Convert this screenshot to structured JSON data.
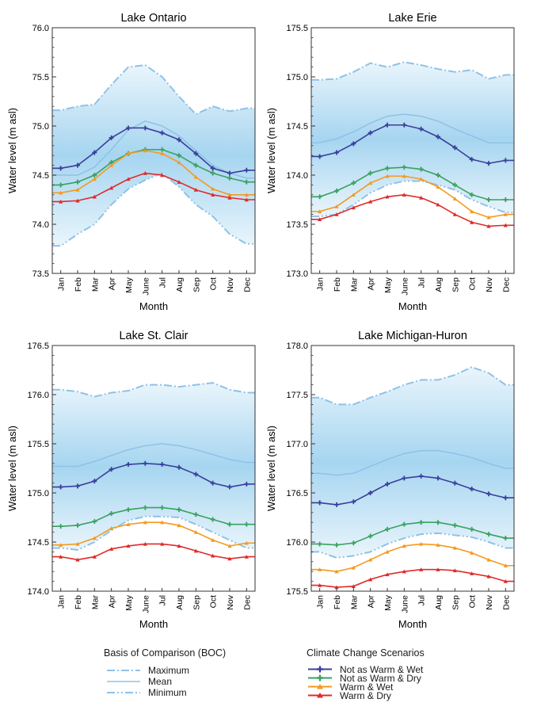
{
  "colors": {
    "not_warm_wet": "#3a3f9c",
    "not_warm_dry": "#3aa160",
    "warm_wet": "#f39a1f",
    "warm_dry": "#e02a2a",
    "boc_line": "#8ec2e8",
    "boc_band": "#2b9bdc"
  },
  "chart_data": [
    {
      "type": "line",
      "title": "Lake Ontario",
      "xlabel": "Month",
      "ylabel": "Water level (m asl)",
      "categories": [
        "Jan",
        "Feb",
        "Mar",
        "Apr",
        "May",
        "June",
        "Jul",
        "Aug",
        "Sep",
        "Oct",
        "Nov",
        "Dec"
      ],
      "ylim": [
        73.5,
        76.0
      ],
      "yticks": [
        "73.5",
        "74.0",
        "74.5",
        "75.0",
        "75.5",
        "76.0"
      ],
      "series": [
        {
          "name": "Maximum",
          "values": [
            75.16,
            75.2,
            75.22,
            75.42,
            75.6,
            75.62,
            75.5,
            75.3,
            75.12,
            75.2,
            75.15,
            75.18
          ]
        },
        {
          "name": "Mean",
          "values": [
            74.5,
            74.5,
            74.58,
            74.76,
            74.96,
            75.05,
            75.0,
            74.9,
            74.75,
            74.6,
            74.52,
            74.47
          ]
        },
        {
          "name": "Minimum",
          "values": [
            73.78,
            73.9,
            74.0,
            74.2,
            74.36,
            74.45,
            74.52,
            74.38,
            74.2,
            74.08,
            73.9,
            73.8
          ]
        },
        {
          "name": "Not as Warm & Wet",
          "values": [
            74.57,
            74.6,
            74.73,
            74.88,
            74.98,
            74.98,
            74.93,
            74.86,
            74.72,
            74.57,
            74.52,
            74.55
          ]
        },
        {
          "name": "Not as Warm & Dry",
          "values": [
            74.4,
            74.43,
            74.5,
            74.63,
            74.72,
            74.76,
            74.76,
            74.7,
            74.6,
            74.52,
            74.47,
            74.43
          ]
        },
        {
          "name": "Warm & Wet",
          "values": [
            74.32,
            74.35,
            74.46,
            74.6,
            74.72,
            74.75,
            74.72,
            74.63,
            74.48,
            74.36,
            74.3,
            74.3
          ]
        },
        {
          "name": "Warm & Dry",
          "values": [
            74.23,
            74.24,
            74.28,
            74.37,
            74.46,
            74.52,
            74.5,
            74.43,
            74.35,
            74.3,
            74.27,
            74.25
          ]
        }
      ]
    },
    {
      "type": "line",
      "title": "Lake Erie",
      "xlabel": "Month",
      "ylabel": "Water level (m asl)",
      "categories": [
        "Jan",
        "Feb",
        "Mar",
        "Apr",
        "May",
        "June",
        "Jul",
        "Aug",
        "Sep",
        "Oct",
        "Nov",
        "Dec"
      ],
      "ylim": [
        173.0,
        175.5
      ],
      "yticks": [
        "173.0",
        "173.5",
        "174.0",
        "174.5",
        "175.0",
        "175.5"
      ],
      "series": [
        {
          "name": "Maximum",
          "values": [
            174.97,
            174.98,
            175.05,
            175.14,
            175.1,
            175.15,
            175.12,
            175.08,
            175.05,
            175.07,
            174.98,
            175.02
          ]
        },
        {
          "name": "Mean",
          "values": [
            174.33,
            174.37,
            174.44,
            174.53,
            174.6,
            174.62,
            174.6,
            174.55,
            174.47,
            174.4,
            174.33,
            174.33
          ]
        },
        {
          "name": "Minimum",
          "values": [
            173.58,
            173.6,
            173.7,
            173.82,
            173.9,
            173.94,
            173.94,
            173.9,
            173.85,
            173.75,
            173.68,
            173.62
          ]
        },
        {
          "name": "Not as Warm & Wet",
          "values": [
            174.19,
            174.23,
            174.32,
            174.43,
            174.51,
            174.51,
            174.47,
            174.39,
            174.28,
            174.16,
            174.12,
            174.15
          ]
        },
        {
          "name": "Not as Warm & Dry",
          "values": [
            173.78,
            173.84,
            173.92,
            174.02,
            174.07,
            174.08,
            174.06,
            174.0,
            173.9,
            173.8,
            173.75,
            173.75
          ]
        },
        {
          "name": "Warm & Wet",
          "values": [
            173.63,
            173.68,
            173.8,
            173.92,
            173.99,
            173.99,
            173.96,
            173.88,
            173.76,
            173.63,
            173.57,
            173.6
          ]
        },
        {
          "name": "Warm & Dry",
          "values": [
            173.55,
            173.6,
            173.67,
            173.73,
            173.78,
            173.8,
            173.77,
            173.7,
            173.6,
            173.52,
            173.48,
            173.49
          ]
        }
      ]
    },
    {
      "type": "line",
      "title": "Lake St. Clair",
      "xlabel": "Month",
      "ylabel": "Water level (m asl)",
      "categories": [
        "Jan",
        "Feb",
        "Mar",
        "Apr",
        "May",
        "June",
        "Jul",
        "Aug",
        "Sep",
        "Oct",
        "Nov",
        "Dec"
      ],
      "ylim": [
        174.0,
        176.5
      ],
      "yticks": [
        "174.0",
        "174.5",
        "175.0",
        "175.5",
        "176.0",
        "176.5"
      ],
      "series": [
        {
          "name": "Maximum",
          "values": [
            176.05,
            176.03,
            175.98,
            176.02,
            176.04,
            176.1,
            176.1,
            176.08,
            176.1,
            176.12,
            176.05,
            176.02
          ]
        },
        {
          "name": "Mean",
          "values": [
            175.27,
            175.27,
            175.32,
            175.38,
            175.44,
            175.48,
            175.5,
            175.48,
            175.44,
            175.39,
            175.34,
            175.31
          ]
        },
        {
          "name": "Minimum",
          "values": [
            174.44,
            174.42,
            174.5,
            174.62,
            174.72,
            174.76,
            174.76,
            174.75,
            174.68,
            174.6,
            174.52,
            174.44
          ]
        },
        {
          "name": "Not as Warm & Wet",
          "values": [
            175.06,
            175.07,
            175.12,
            175.24,
            175.29,
            175.3,
            175.29,
            175.26,
            175.19,
            175.1,
            175.06,
            175.09
          ]
        },
        {
          "name": "Not as Warm & Dry",
          "values": [
            174.66,
            174.67,
            174.71,
            174.79,
            174.83,
            174.85,
            174.85,
            174.83,
            174.78,
            174.73,
            174.68,
            174.68
          ]
        },
        {
          "name": "Warm & Wet",
          "values": [
            174.47,
            174.48,
            174.54,
            174.64,
            174.68,
            174.7,
            174.7,
            174.67,
            174.6,
            174.52,
            174.46,
            174.49
          ]
        },
        {
          "name": "Warm & Dry",
          "values": [
            174.35,
            174.32,
            174.35,
            174.43,
            174.46,
            174.48,
            174.48,
            174.46,
            174.41,
            174.36,
            174.33,
            174.35
          ]
        }
      ]
    },
    {
      "type": "line",
      "title": "Lake Michigan-Huron",
      "xlabel": "Month",
      "ylabel": "Water level (m asl)",
      "categories": [
        "Jan",
        "Feb",
        "Mar",
        "Apr",
        "May",
        "June",
        "Jul",
        "Aug",
        "Sep",
        "Oct",
        "Nov",
        "Dec"
      ],
      "ylim": [
        175.5,
        178.0
      ],
      "yticks": [
        "175.5",
        "176.0",
        "176.5",
        "177.0",
        "177.5",
        "178.0"
      ],
      "series": [
        {
          "name": "Maximum",
          "values": [
            177.47,
            177.4,
            177.4,
            177.47,
            177.53,
            177.6,
            177.65,
            177.65,
            177.7,
            177.78,
            177.72,
            177.6
          ]
        },
        {
          "name": "Mean",
          "values": [
            176.7,
            176.68,
            176.7,
            176.77,
            176.84,
            176.9,
            176.93,
            176.93,
            176.9,
            176.86,
            176.8,
            176.75
          ]
        },
        {
          "name": "Minimum",
          "values": [
            175.9,
            175.84,
            175.86,
            175.9,
            175.98,
            176.04,
            176.08,
            176.09,
            176.07,
            176.05,
            176.0,
            175.94
          ]
        },
        {
          "name": "Not as Warm & Wet",
          "values": [
            176.4,
            176.38,
            176.41,
            176.5,
            176.59,
            176.65,
            176.67,
            176.65,
            176.6,
            176.54,
            176.49,
            176.45
          ]
        },
        {
          "name": "Not as Warm & Dry",
          "values": [
            175.98,
            175.97,
            175.99,
            176.06,
            176.13,
            176.18,
            176.2,
            176.2,
            176.17,
            176.13,
            176.08,
            176.04
          ]
        },
        {
          "name": "Warm & Wet",
          "values": [
            175.72,
            175.7,
            175.74,
            175.82,
            175.9,
            175.96,
            175.98,
            175.97,
            175.94,
            175.89,
            175.82,
            175.76
          ]
        },
        {
          "name": "Warm & Dry",
          "values": [
            175.56,
            175.54,
            175.55,
            175.62,
            175.67,
            175.7,
            175.72,
            175.72,
            175.71,
            175.68,
            175.65,
            175.6
          ]
        }
      ]
    }
  ],
  "legend": {
    "boc": {
      "title": "Basis of Comparison (BOC)",
      "items": [
        "Maximum",
        "Mean",
        "Minimum"
      ]
    },
    "scenarios": {
      "title": "Climate Change Scenarios",
      "items": [
        "Not as Warm & Wet",
        "Not as Warm & Dry",
        "Warm & Wet",
        "Warm & Dry"
      ]
    }
  }
}
